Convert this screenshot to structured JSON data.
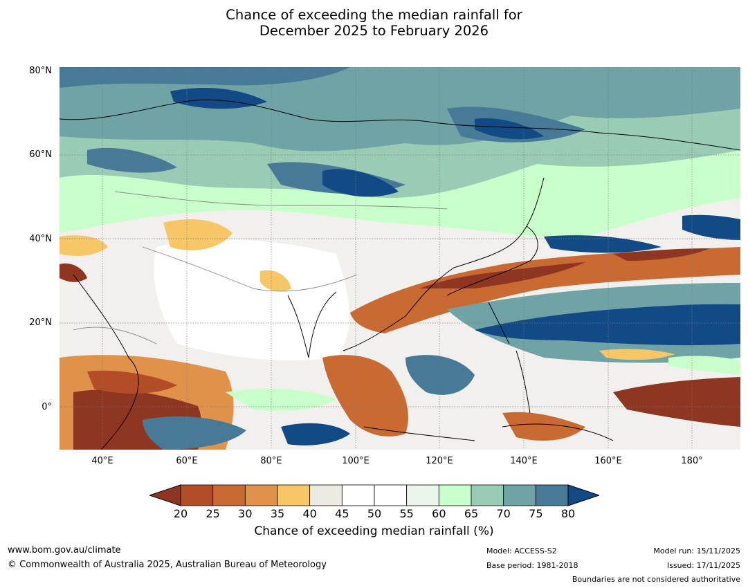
{
  "title": {
    "line1": "Chance of exceeding the median rainfall for",
    "line2": "December 2025 to February 2026"
  },
  "map": {
    "lat_labels": [
      "80°N",
      "60°N",
      "40°N",
      "20°N",
      "0°"
    ],
    "lon_labels": [
      "40°E",
      "60°E",
      "80°E",
      "100°E",
      "120°E",
      "140°E",
      "160°E",
      "180°"
    ]
  },
  "colorbar": {
    "ticks": [
      "20",
      "25",
      "30",
      "35",
      "40",
      "45",
      "50",
      "55",
      "60",
      "65",
      "70",
      "75",
      "80"
    ],
    "colors": [
      "#8e3621",
      "#b34d27",
      "#c96a33",
      "#e0924a",
      "#f7c767",
      "#edeae4",
      "#ffffff",
      "#ffffff",
      "#eaf6ea",
      "#c9ffcb",
      "#9acbb4",
      "#6fa3a5",
      "#477a96",
      "#124a86"
    ],
    "title": "Chance of exceeding median rainfall (%)"
  },
  "footer": {
    "url": "www.bom.gov.au/climate",
    "copyright": "© Commonwealth of Australia 2025, Australian Bureau of Meteorology",
    "model": "Model: ACCESS-S2",
    "base_period": "Base period: 1981-2018",
    "model_run": "Model run: 15/11/2025",
    "issued": "Issued: 17/11/2025",
    "disclaimer": "Boundaries are not considered authoritative"
  }
}
